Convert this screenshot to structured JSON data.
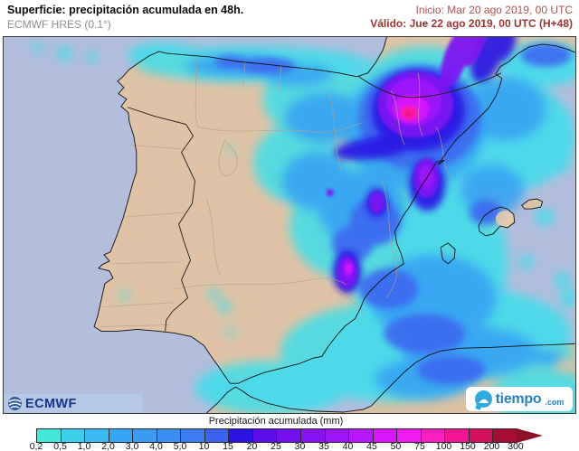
{
  "header": {
    "title": "Superficie: precipitación acumulada en 48h.",
    "subtitle": "ECMWF HRES (0.1°)",
    "init_label": "Inicio: Mar 20 ago 2019, 00 UTC",
    "valid_label": "Válido: Jue 22 ago 2019, 00 UTC (H+48)"
  },
  "map": {
    "region": "Iberian Peninsula and western Mediterranean",
    "sea_color": "#b3bddc",
    "land_color": "#e0c3a6",
    "coast_color": "#101010"
  },
  "logos": {
    "ecmwf_label": "ECMWF",
    "tiempo_word": "tiempo",
    "tiempo_tld": ".com",
    "ecmwf_blue": "#2a5aa8",
    "tiempo_blue": "#2fa9e0"
  },
  "legend": {
    "title": "Precipitación acumulada (mm)",
    "ticks": [
      "0,2",
      "0,5",
      "1,0",
      "2,0",
      "3,0",
      "4,0",
      "5,0",
      "10",
      "15",
      "20",
      "25",
      "30",
      "35",
      "40",
      "45",
      "50",
      "75",
      "100",
      "150",
      "200",
      "300"
    ],
    "cell_colors": [
      "#41e8da",
      "#3dd0ec",
      "#39baf2",
      "#36a6f4",
      "#3a9af4",
      "#3b8ef4",
      "#3c7cf2",
      "#3c62f0",
      "#2c12e4",
      "#5c0eea",
      "#7410f0",
      "#8812f6",
      "#9c14fa",
      "#b816fd",
      "#d816ff",
      "#f01bf2",
      "#fb1fc0",
      "#f51494",
      "#d50f5c",
      "#a60d32"
    ],
    "arrow_color": "#8c1126"
  }
}
